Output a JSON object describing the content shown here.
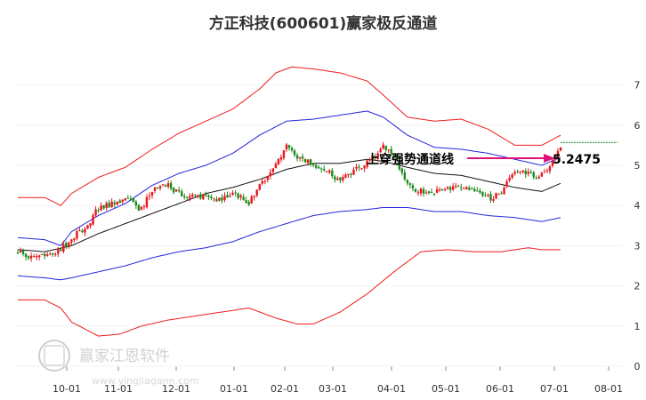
{
  "chart_data": {
    "type": "candlestick",
    "title": "方正科技(600601)赢家极反通道",
    "y_ticks": [
      0,
      1,
      2,
      3,
      4,
      5,
      6,
      7
    ],
    "ylim": [
      0,
      7.3
    ],
    "x_tick_labels": [
      "10-01",
      "11-01",
      "12-01",
      "01-01",
      "02-01",
      "03-01",
      "04-01",
      "05-01",
      "06-01",
      "07-01",
      "08-01"
    ],
    "price_key_points": [
      [
        0,
        2.8
      ],
      [
        6,
        2.75
      ],
      [
        10,
        2.7
      ],
      [
        16,
        2.9
      ],
      [
        20,
        3.2
      ],
      [
        26,
        3.5
      ],
      [
        30,
        3.95
      ],
      [
        36,
        4.05
      ],
      [
        40,
        4.2
      ],
      [
        46,
        3.9
      ],
      [
        50,
        4.4
      ],
      [
        56,
        4.5
      ],
      [
        60,
        4.3
      ],
      [
        66,
        4.2
      ],
      [
        70,
        4.3
      ],
      [
        76,
        4.1
      ],
      [
        80,
        4.35
      ],
      [
        86,
        4.05
      ],
      [
        90,
        4.5
      ],
      [
        96,
        5.0
      ],
      [
        100,
        5.5
      ],
      [
        104,
        5.2
      ],
      [
        108,
        5.1
      ],
      [
        112,
        4.9
      ],
      [
        116,
        4.85
      ],
      [
        120,
        4.6
      ],
      [
        124,
        4.8
      ],
      [
        128,
        5.0
      ],
      [
        132,
        5.2
      ],
      [
        136,
        5.45
      ],
      [
        140,
        5.2
      ],
      [
        144,
        4.7
      ],
      [
        148,
        4.3
      ],
      [
        152,
        4.4
      ],
      [
        156,
        4.35
      ],
      [
        160,
        4.45
      ],
      [
        164,
        4.5
      ],
      [
        168,
        4.45
      ],
      [
        172,
        4.3
      ],
      [
        176,
        4.2
      ],
      [
        180,
        4.3
      ],
      [
        184,
        4.75
      ],
      [
        188,
        4.85
      ],
      [
        192,
        4.7
      ],
      [
        196,
        4.8
      ],
      [
        200,
        5.25
      ],
      [
        202,
        5.45
      ]
    ],
    "channel": {
      "upper_band_key_points": [
        [
          0,
          4.2
        ],
        [
          10,
          4.2
        ],
        [
          16,
          4.0
        ],
        [
          20,
          4.3
        ],
        [
          30,
          4.7
        ],
        [
          40,
          4.95
        ],
        [
          50,
          5.4
        ],
        [
          60,
          5.8
        ],
        [
          70,
          6.1
        ],
        [
          80,
          6.4
        ],
        [
          90,
          6.9
        ],
        [
          96,
          7.3
        ],
        [
          102,
          7.45
        ],
        [
          110,
          7.4
        ],
        [
          120,
          7.3
        ],
        [
          130,
          7.1
        ],
        [
          136,
          6.75
        ],
        [
          145,
          6.2
        ],
        [
          155,
          6.1
        ],
        [
          165,
          6.15
        ],
        [
          175,
          5.9
        ],
        [
          185,
          5.5
        ],
        [
          195,
          5.5
        ],
        [
          202,
          5.75
        ]
      ],
      "upper_inner_key_points": [
        [
          0,
          3.2
        ],
        [
          10,
          3.15
        ],
        [
          16,
          3.0
        ],
        [
          20,
          3.35
        ],
        [
          30,
          3.75
        ],
        [
          40,
          4.05
        ],
        [
          50,
          4.5
        ],
        [
          60,
          4.8
        ],
        [
          70,
          5.0
        ],
        [
          80,
          5.3
        ],
        [
          90,
          5.75
        ],
        [
          100,
          6.1
        ],
        [
          110,
          6.15
        ],
        [
          120,
          6.25
        ],
        [
          130,
          6.35
        ],
        [
          136,
          6.2
        ],
        [
          145,
          5.75
        ],
        [
          155,
          5.45
        ],
        [
          165,
          5.4
        ],
        [
          175,
          5.3
        ],
        [
          185,
          5.15
        ],
        [
          195,
          5.0
        ],
        [
          202,
          5.2
        ]
      ],
      "middle_key_points": [
        [
          0,
          2.9
        ],
        [
          10,
          2.85
        ],
        [
          20,
          3.0
        ],
        [
          30,
          3.3
        ],
        [
          40,
          3.55
        ],
        [
          50,
          3.8
        ],
        [
          60,
          4.05
        ],
        [
          70,
          4.3
        ],
        [
          80,
          4.45
        ],
        [
          90,
          4.65
        ],
        [
          100,
          4.9
        ],
        [
          110,
          5.05
        ],
        [
          120,
          5.05
        ],
        [
          130,
          5.15
        ],
        [
          136,
          5.1
        ],
        [
          145,
          4.95
        ],
        [
          155,
          4.8
        ],
        [
          165,
          4.75
        ],
        [
          175,
          4.6
        ],
        [
          185,
          4.45
        ],
        [
          195,
          4.35
        ],
        [
          202,
          4.55
        ]
      ],
      "lower_inner_key_points": [
        [
          0,
          2.25
        ],
        [
          10,
          2.2
        ],
        [
          16,
          2.15
        ],
        [
          20,
          2.2
        ],
        [
          30,
          2.35
        ],
        [
          40,
          2.5
        ],
        [
          50,
          2.7
        ],
        [
          60,
          2.85
        ],
        [
          70,
          2.95
        ],
        [
          80,
          3.1
        ],
        [
          90,
          3.35
        ],
        [
          100,
          3.55
        ],
        [
          110,
          3.75
        ],
        [
          120,
          3.85
        ],
        [
          130,
          3.9
        ],
        [
          136,
          3.95
        ],
        [
          145,
          3.95
        ],
        [
          155,
          3.85
        ],
        [
          165,
          3.85
        ],
        [
          175,
          3.75
        ],
        [
          185,
          3.7
        ],
        [
          195,
          3.6
        ],
        [
          202,
          3.7
        ]
      ],
      "lower_band_key_points": [
        [
          0,
          1.65
        ],
        [
          10,
          1.65
        ],
        [
          16,
          1.45
        ],
        [
          20,
          1.1
        ],
        [
          30,
          0.75
        ],
        [
          38,
          0.8
        ],
        [
          46,
          1.0
        ],
        [
          56,
          1.15
        ],
        [
          66,
          1.25
        ],
        [
          76,
          1.35
        ],
        [
          86,
          1.45
        ],
        [
          96,
          1.2
        ],
        [
          104,
          1.05
        ],
        [
          110,
          1.05
        ],
        [
          120,
          1.35
        ],
        [
          130,
          1.8
        ],
        [
          140,
          2.35
        ],
        [
          150,
          2.85
        ],
        [
          160,
          2.9
        ],
        [
          170,
          2.85
        ],
        [
          180,
          2.85
        ],
        [
          190,
          2.95
        ],
        [
          195,
          2.9
        ],
        [
          202,
          2.9
        ]
      ]
    },
    "breakout_level": 5.57,
    "annotation": {
      "label": "上穿强势通道线",
      "value_label": "5.2475",
      "value": 5.2475
    }
  },
  "colors": {
    "up": "#e8151b",
    "down": "#1a8a1a",
    "band_red": "#ee1c1c",
    "band_blue": "#2323dd",
    "middle": "#111111",
    "arrow": "#dd1177",
    "axis": "#888888",
    "breakout": "#117711"
  },
  "watermark": {
    "name": "赢家江恩软件",
    "url": "www.yingjiagann.com"
  }
}
